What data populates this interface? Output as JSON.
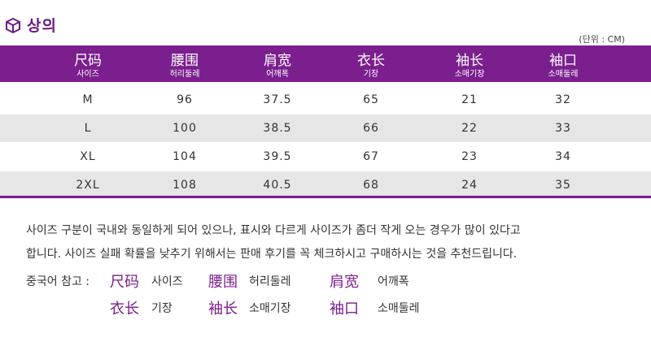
{
  "title": "상의",
  "unit_note": "(단위 : CM)",
  "colors": {
    "accent": "#7b1f8e",
    "row_alt": "#e6e6e6"
  },
  "headers": [
    {
      "cn": "尺码",
      "kr": "사이즈"
    },
    {
      "cn": "腰围",
      "kr": "허리둘레"
    },
    {
      "cn": "肩宽",
      "kr": "어깨폭"
    },
    {
      "cn": "衣长",
      "kr": "기장"
    },
    {
      "cn": "袖长",
      "kr": "소매기장"
    },
    {
      "cn": "袖口",
      "kr": "소매둘레"
    }
  ],
  "rows": [
    [
      "M",
      "96",
      "37.5",
      "65",
      "21",
      "32"
    ],
    [
      "L",
      "100",
      "38.5",
      "66",
      "22",
      "33"
    ],
    [
      "XL",
      "104",
      "39.5",
      "67",
      "23",
      "34"
    ],
    [
      "2XL",
      "108",
      "40.5",
      "68",
      "24",
      "35"
    ]
  ],
  "notice": {
    "line1": "사이즈 구분이 국내와 동일하게 되어 있으나, 표시와 다르게 사이즈가 좀더 작게 오는 경우가 많이 있다고",
    "line2": "합니다. 사이즈 실패 확률을 낮추기 위해서는 판매 후기를 꼭 체크하시고 구매하시는 것을 추천드립니다."
  },
  "reference": {
    "label": "중국어 참고 :",
    "items": [
      {
        "cn": "尺码",
        "kr": "사이즈"
      },
      {
        "cn": "腰围",
        "kr": "허리둘레"
      },
      {
        "cn": "肩宽",
        "kr": "어깨폭"
      },
      {
        "cn": "衣长",
        "kr": "기장"
      },
      {
        "cn": "袖长",
        "kr": "소매기장"
      },
      {
        "cn": "袖口",
        "kr": "소매둘레"
      }
    ]
  }
}
